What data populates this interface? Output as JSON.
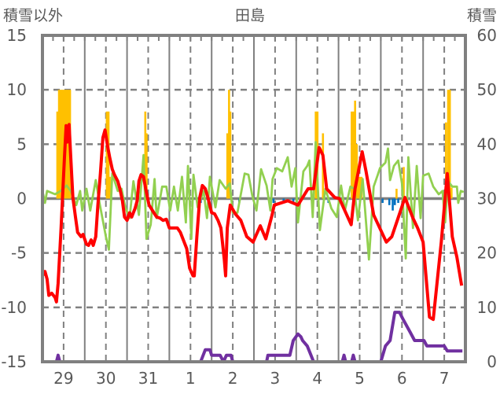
{
  "chart_data": {
    "type": "line",
    "title": "田島",
    "ylabel_left": "積雪以外",
    "ylabel_right": "積雪",
    "ylim_left": [
      -15,
      15
    ],
    "ylim_right": [
      0,
      60
    ],
    "yticks_left": [
      15,
      10,
      5,
      0,
      -5,
      -10,
      -15
    ],
    "yticks_right": [
      60,
      50,
      40,
      30,
      20,
      10,
      0
    ],
    "x_unit": "days from start of 29th",
    "xlim": [
      0,
      10
    ],
    "categories": [
      "29",
      "30",
      "31",
      "1",
      "2",
      "3",
      "4",
      "5",
      "6",
      "7"
    ],
    "grid": true,
    "colors": {
      "red": "#ff0000",
      "green": "#92d050",
      "orange": "#ffc000",
      "blue": "#0070c0",
      "purple": "#7030a0",
      "axis": "#808080",
      "text": "#595959"
    },
    "series": [
      {
        "name": "red-line",
        "axis": "left",
        "kind": "line",
        "color": "#ff0000",
        "points": [
          [
            0,
            -7.1
          ],
          [
            0.06,
            -6.7
          ],
          [
            0.11,
            -7.4
          ],
          [
            0.15,
            -8.9
          ],
          [
            0.22,
            -8.7
          ],
          [
            0.3,
            -9.1
          ],
          [
            0.33,
            -9.5
          ],
          [
            0.37,
            -7.8
          ],
          [
            0.44,
            -2.7
          ],
          [
            0.52,
            3.8
          ],
          [
            0.56,
            6.7
          ],
          [
            0.59,
            5.2
          ],
          [
            0.63,
            6.8
          ],
          [
            0.67,
            3.8
          ],
          [
            0.72,
            0.1
          ],
          [
            0.78,
            -1.7
          ],
          [
            0.83,
            -3.1
          ],
          [
            0.91,
            -3.5
          ],
          [
            0.96,
            -3.3
          ],
          [
            1.04,
            -4.2
          ],
          [
            1.09,
            -4.3
          ],
          [
            1.15,
            -3.8
          ],
          [
            1.2,
            -4.3
          ],
          [
            1.26,
            -3.5
          ],
          [
            1.31,
            -0.6
          ],
          [
            1.37,
            2.3
          ],
          [
            1.43,
            5.6
          ],
          [
            1.48,
            6.3
          ],
          [
            1.54,
            4.8
          ],
          [
            1.59,
            3.8
          ],
          [
            1.65,
            2.7
          ],
          [
            1.7,
            2.2
          ],
          [
            1.78,
            1.6
          ],
          [
            1.83,
            0.9
          ],
          [
            1.89,
            -0.2
          ],
          [
            1.94,
            -1.7
          ],
          [
            2.0,
            -2.0
          ],
          [
            2.06,
            -1.3
          ],
          [
            2.11,
            -1.7
          ],
          [
            2.19,
            -0.9
          ],
          [
            2.24,
            -0.2
          ],
          [
            2.28,
            1.6
          ],
          [
            2.33,
            2.2
          ],
          [
            2.39,
            2.0
          ],
          [
            2.44,
            0.9
          ],
          [
            2.52,
            -0.6
          ],
          [
            2.57,
            -0.9
          ],
          [
            2.65,
            -1.4
          ],
          [
            2.7,
            -1.7
          ],
          [
            2.78,
            -1.8
          ],
          [
            2.85,
            -2.0
          ],
          [
            2.93,
            -1.9
          ],
          [
            3.0,
            -2.7
          ],
          [
            3.07,
            -2.7
          ],
          [
            3.19,
            -2.7
          ],
          [
            3.26,
            -3.1
          ],
          [
            3.33,
            -3.8
          ],
          [
            3.41,
            -4.6
          ],
          [
            3.48,
            -6.4
          ],
          [
            3.56,
            -7.1
          ],
          [
            3.59,
            -7.1
          ],
          [
            3.65,
            -3.5
          ],
          [
            3.72,
            0.1
          ],
          [
            3.78,
            1.2
          ],
          [
            3.85,
            0.9
          ],
          [
            3.91,
            0.1
          ],
          [
            4.0,
            -1.3
          ],
          [
            4.07,
            -1.4
          ],
          [
            4.15,
            -2.0
          ],
          [
            4.22,
            -2.7
          ],
          [
            4.3,
            -5.6
          ],
          [
            4.33,
            -7.1
          ],
          [
            4.37,
            -2.7
          ],
          [
            4.44,
            -0.6
          ],
          [
            4.56,
            -1.4
          ],
          [
            4.69,
            -2.0
          ],
          [
            4.83,
            -3.5
          ],
          [
            4.98,
            -4.0
          ],
          [
            5.15,
            -2.5
          ],
          [
            5.28,
            -3.7
          ],
          [
            5.43,
            -1.5
          ],
          [
            5.48,
            -0.6
          ],
          [
            5.8,
            -0.2
          ],
          [
            6.04,
            -0.6
          ],
          [
            6.28,
            0.9
          ],
          [
            6.41,
            0.9
          ],
          [
            6.54,
            4.7
          ],
          [
            6.63,
            4.0
          ],
          [
            6.72,
            0.9
          ],
          [
            6.91,
            0.1
          ],
          [
            7.02,
            0
          ],
          [
            7.3,
            -2.4
          ],
          [
            7.39,
            0.9
          ],
          [
            7.56,
            4.3
          ],
          [
            7.65,
            2.5
          ],
          [
            7.83,
            -1.5
          ],
          [
            8.13,
            -4.0
          ],
          [
            8.26,
            -3.5
          ],
          [
            8.39,
            -2.0
          ],
          [
            8.57,
            0.1
          ],
          [
            8.76,
            -1.8
          ],
          [
            8.87,
            -2.7
          ],
          [
            9.0,
            -4.0
          ],
          [
            9.15,
            -10.9
          ],
          [
            9.24,
            -11.1
          ],
          [
            9.43,
            -4.0
          ],
          [
            9.57,
            2.3
          ],
          [
            9.69,
            -3.5
          ],
          [
            9.8,
            -5.4
          ],
          [
            9.91,
            -8.0
          ]
        ]
      },
      {
        "name": "green-line",
        "axis": "left",
        "kind": "line",
        "color": "#92d050",
        "points": [
          [
            0,
            0.7
          ],
          [
            0.06,
            -0.4
          ],
          [
            0.11,
            0.7
          ],
          [
            0.3,
            0.4
          ],
          [
            0.43,
            0.7
          ],
          [
            0.57,
            1.2
          ],
          [
            0.67,
            0.7
          ],
          [
            0.8,
            -0.6
          ],
          [
            0.89,
            0.7
          ],
          [
            0.94,
            -1.1
          ],
          [
            1.04,
            0.9
          ],
          [
            1.13,
            -1.1
          ],
          [
            1.26,
            1.7
          ],
          [
            1.35,
            -0.4
          ],
          [
            1.5,
            -3.5
          ],
          [
            1.57,
            -4.7
          ],
          [
            1.65,
            2.3
          ],
          [
            1.78,
            0.7
          ],
          [
            1.87,
            0.9
          ],
          [
            1.96,
            -0.8
          ],
          [
            2.06,
            -1.8
          ],
          [
            2.15,
            1.6
          ],
          [
            2.28,
            -1.5
          ],
          [
            2.39,
            4.0
          ],
          [
            2.46,
            -3.7
          ],
          [
            2.56,
            -2.4
          ],
          [
            2.65,
            1.8
          ],
          [
            2.7,
            -1.8
          ],
          [
            2.83,
            1.1
          ],
          [
            2.93,
            1.1
          ],
          [
            3.02,
            -1.1
          ],
          [
            3.11,
            1.1
          ],
          [
            3.2,
            -1.1
          ],
          [
            3.3,
            2.0
          ],
          [
            3.39,
            -2.2
          ],
          [
            3.44,
            3.0
          ],
          [
            3.52,
            -3.7
          ],
          [
            3.57,
            2.2
          ],
          [
            3.67,
            -0.8
          ],
          [
            3.81,
            0.7
          ],
          [
            3.89,
            -1.8
          ],
          [
            3.96,
            2.0
          ],
          [
            4.09,
            -0.8
          ],
          [
            4.19,
            1.7
          ],
          [
            4.33,
            0.9
          ],
          [
            4.43,
            1.4
          ],
          [
            4.5,
            -1.3
          ],
          [
            4.61,
            -1.3
          ],
          [
            4.78,
            2.3
          ],
          [
            4.87,
            2.2
          ],
          [
            4.96,
            0.3
          ],
          [
            5.06,
            -1.1
          ],
          [
            5.17,
            2.7
          ],
          [
            5.3,
            1.2
          ],
          [
            5.39,
            -1.1
          ],
          [
            5.44,
            1.8
          ],
          [
            5.54,
            2.8
          ],
          [
            5.67,
            2.5
          ],
          [
            5.8,
            3.8
          ],
          [
            5.89,
            1.1
          ],
          [
            5.98,
            2.8
          ],
          [
            6.04,
            -2.2
          ],
          [
            6.17,
            2.5
          ],
          [
            6.26,
            3.0
          ],
          [
            6.31,
            3.5
          ],
          [
            6.39,
            -1.7
          ],
          [
            6.46,
            5.2
          ],
          [
            6.56,
            -2.9
          ],
          [
            6.69,
            0.9
          ],
          [
            6.83,
            -0.9
          ],
          [
            6.96,
            -1.7
          ],
          [
            7.06,
            1.2
          ],
          [
            7.15,
            -1.1
          ],
          [
            7.28,
            1.1
          ],
          [
            7.37,
            0.9
          ],
          [
            7.46,
            -2.0
          ],
          [
            7.57,
            1.8
          ],
          [
            7.72,
            -5.6
          ],
          [
            7.83,
            1.1
          ],
          [
            7.93,
            2.2
          ],
          [
            7.98,
            2.8
          ],
          [
            8.11,
            3.3
          ],
          [
            8.17,
            4.6
          ],
          [
            8.22,
            1.7
          ],
          [
            8.31,
            3.0
          ],
          [
            8.41,
            3.5
          ],
          [
            8.5,
            1.4
          ],
          [
            8.59,
            -5.5
          ],
          [
            8.65,
            3.8
          ],
          [
            8.76,
            -2.7
          ],
          [
            8.85,
            3.0
          ],
          [
            8.94,
            -1.8
          ],
          [
            9.0,
            2.1
          ],
          [
            9.13,
            2.3
          ],
          [
            9.24,
            1.1
          ],
          [
            9.37,
            0.4
          ],
          [
            9.46,
            0.7
          ],
          [
            9.52,
            -2.2
          ],
          [
            9.59,
            1.6
          ],
          [
            9.69,
            1.1
          ],
          [
            9.8,
            1.1
          ],
          [
            9.83,
            -0.4
          ],
          [
            9.89,
            0.7
          ],
          [
            9.96,
            0.6
          ]
        ]
      },
      {
        "name": "orange-bars",
        "axis": "left",
        "kind": "bar",
        "color": "#ffc000",
        "points": [
          [
            0.35,
            8
          ],
          [
            0.39,
            10
          ],
          [
            0.43,
            10
          ],
          [
            0.46,
            10
          ],
          [
            0.5,
            10
          ],
          [
            0.54,
            10
          ],
          [
            0.57,
            10
          ],
          [
            0.61,
            10
          ],
          [
            0.65,
            10
          ],
          [
            1.52,
            8
          ],
          [
            1.56,
            8
          ],
          [
            1.59,
            2
          ],
          [
            2.43,
            8
          ],
          [
            2.46,
            6
          ],
          [
            4.37,
            6
          ],
          [
            4.41,
            10
          ],
          [
            4.44,
            8
          ],
          [
            6.46,
            8
          ],
          [
            6.5,
            8
          ],
          [
            6.63,
            6
          ],
          [
            7.31,
            8
          ],
          [
            7.35,
            8
          ],
          [
            7.39,
            9
          ],
          [
            7.43,
            5
          ],
          [
            7.46,
            2
          ],
          [
            7.5,
            2
          ],
          [
            7.54,
            2
          ],
          [
            8.37,
            0.9
          ],
          [
            8.54,
            2.9
          ],
          [
            9.54,
            7
          ],
          [
            9.59,
            10
          ],
          [
            9.63,
            10
          ],
          [
            9.67,
            1
          ]
        ]
      },
      {
        "name": "blue-bars",
        "axis": "left",
        "kind": "bar",
        "color": "#0070c0",
        "points": [
          [
            1.89,
            -0.4
          ],
          [
            3.74,
            -0.4
          ],
          [
            4.65,
            -0.4
          ],
          [
            5.46,
            -0.4
          ],
          [
            5.7,
            -0.4
          ],
          [
            5.93,
            -0.4
          ],
          [
            6.76,
            -0.4
          ],
          [
            8.04,
            -0.4
          ],
          [
            8.2,
            -0.6
          ],
          [
            8.28,
            -1.1
          ],
          [
            8.33,
            -0.6
          ],
          [
            8.41,
            -0.4
          ]
        ]
      },
      {
        "name": "purple-line",
        "axis": "right",
        "kind": "line",
        "color": "#7030a0",
        "points": [
          [
            0,
            0
          ],
          [
            0.33,
            0
          ],
          [
            0.37,
            1.2
          ],
          [
            0.41,
            0
          ],
          [
            3.74,
            0
          ],
          [
            3.85,
            2.2
          ],
          [
            3.96,
            2.2
          ],
          [
            4.0,
            1.2
          ],
          [
            4.2,
            1.2
          ],
          [
            4.28,
            0
          ],
          [
            4.35,
            1.2
          ],
          [
            4.46,
            1.2
          ],
          [
            4.5,
            0
          ],
          [
            5.3,
            0
          ],
          [
            5.33,
            1.2
          ],
          [
            5.85,
            1.2
          ],
          [
            5.93,
            3.9
          ],
          [
            6.04,
            5.1
          ],
          [
            6.11,
            4.6
          ],
          [
            6.15,
            3.9
          ],
          [
            6.26,
            2.9
          ],
          [
            6.41,
            0
          ],
          [
            7.09,
            0
          ],
          [
            7.13,
            1.2
          ],
          [
            7.17,
            0
          ],
          [
            7.31,
            0
          ],
          [
            7.35,
            1.2
          ],
          [
            7.39,
            0
          ],
          [
            8.0,
            0
          ],
          [
            8.11,
            2.9
          ],
          [
            8.22,
            3.9
          ],
          [
            8.33,
            9.1
          ],
          [
            8.44,
            9.1
          ],
          [
            8.52,
            7.9
          ],
          [
            8.69,
            5.5
          ],
          [
            8.8,
            3.9
          ],
          [
            9.02,
            3.9
          ],
          [
            9.09,
            2.9
          ],
          [
            9.5,
            2.9
          ],
          [
            9.57,
            2.0
          ],
          [
            9.93,
            2.0
          ]
        ]
      }
    ]
  }
}
